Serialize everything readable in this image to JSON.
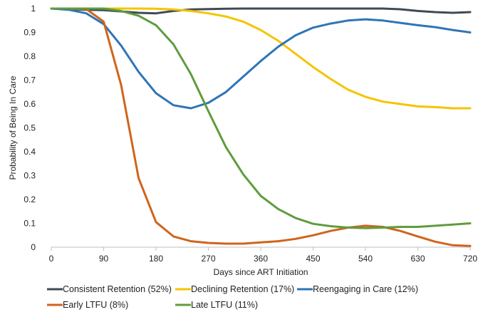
{
  "chart_data": {
    "type": "line",
    "title": "",
    "xlabel": "Days since ART Initiation",
    "ylabel": "Probability of Being In Care",
    "xlim": [
      0,
      720
    ],
    "ylim": [
      0,
      1
    ],
    "xticks": [
      0,
      90,
      180,
      270,
      360,
      450,
      540,
      630,
      720
    ],
    "yticks": [
      0,
      0.1,
      0.2,
      0.3,
      0.4,
      0.5,
      0.6,
      0.7,
      0.8,
      0.9,
      1
    ],
    "ytick_labels": [
      "0",
      "0.1",
      "0.2",
      "0.3",
      "0.4",
      "0.5",
      "0.6",
      "0.7",
      "0.8",
      "0.9",
      "1"
    ],
    "grid": "none",
    "legend_position": "bottom",
    "x": [
      0,
      30,
      60,
      90,
      120,
      150,
      180,
      210,
      240,
      270,
      300,
      330,
      360,
      390,
      420,
      450,
      480,
      510,
      540,
      570,
      600,
      630,
      660,
      690,
      720
    ],
    "series": [
      {
        "name": "Consistent Retention (52%)",
        "color": "#404a55",
        "values": [
          1.0,
          0.998,
          0.995,
          0.993,
          0.988,
          0.982,
          0.98,
          0.99,
          0.996,
          0.998,
          0.999,
          1.0,
          1.0,
          1.0,
          1.0,
          1.0,
          1.0,
          1.0,
          1.0,
          1.0,
          0.997,
          0.99,
          0.985,
          0.982,
          0.985
        ]
      },
      {
        "name": "Declining Retention (17%)",
        "color": "#f5c400",
        "values": [
          1.0,
          1.0,
          1.0,
          1.0,
          1.0,
          1.0,
          0.999,
          0.996,
          0.99,
          0.98,
          0.967,
          0.945,
          0.91,
          0.865,
          0.81,
          0.755,
          0.705,
          0.66,
          0.63,
          0.61,
          0.6,
          0.59,
          0.587,
          0.582,
          0.582
        ]
      },
      {
        "name": "Reengaging in Care (12%)",
        "color": "#2e75b6",
        "values": [
          1.0,
          0.995,
          0.98,
          0.935,
          0.845,
          0.735,
          0.645,
          0.595,
          0.582,
          0.605,
          0.65,
          0.715,
          0.78,
          0.84,
          0.888,
          0.92,
          0.937,
          0.95,
          0.955,
          0.95,
          0.94,
          0.93,
          0.922,
          0.91,
          0.9
        ]
      },
      {
        "name": "Early LTFU (8%)",
        "color": "#d0641c",
        "values": [
          1.0,
          1.0,
          0.998,
          0.945,
          0.68,
          0.29,
          0.105,
          0.045,
          0.025,
          0.018,
          0.015,
          0.015,
          0.02,
          0.025,
          0.035,
          0.05,
          0.068,
          0.082,
          0.09,
          0.085,
          0.068,
          0.045,
          0.023,
          0.008,
          0.005
        ]
      },
      {
        "name": "Late LTFU (11%)",
        "color": "#5f9c3e",
        "values": [
          1.0,
          1.0,
          1.0,
          1.0,
          0.99,
          0.97,
          0.93,
          0.85,
          0.725,
          0.57,
          0.42,
          0.305,
          0.215,
          0.16,
          0.122,
          0.098,
          0.088,
          0.082,
          0.08,
          0.082,
          0.085,
          0.085,
          0.09,
          0.095,
          0.1
        ]
      }
    ],
    "legend_rows": [
      [
        "Consistent Retention (52%)",
        "Declining Retention (17%)",
        "Reengaging in Care (12%)"
      ],
      [
        "Early LTFU (8%)",
        "Late LTFU (11%)"
      ]
    ]
  }
}
